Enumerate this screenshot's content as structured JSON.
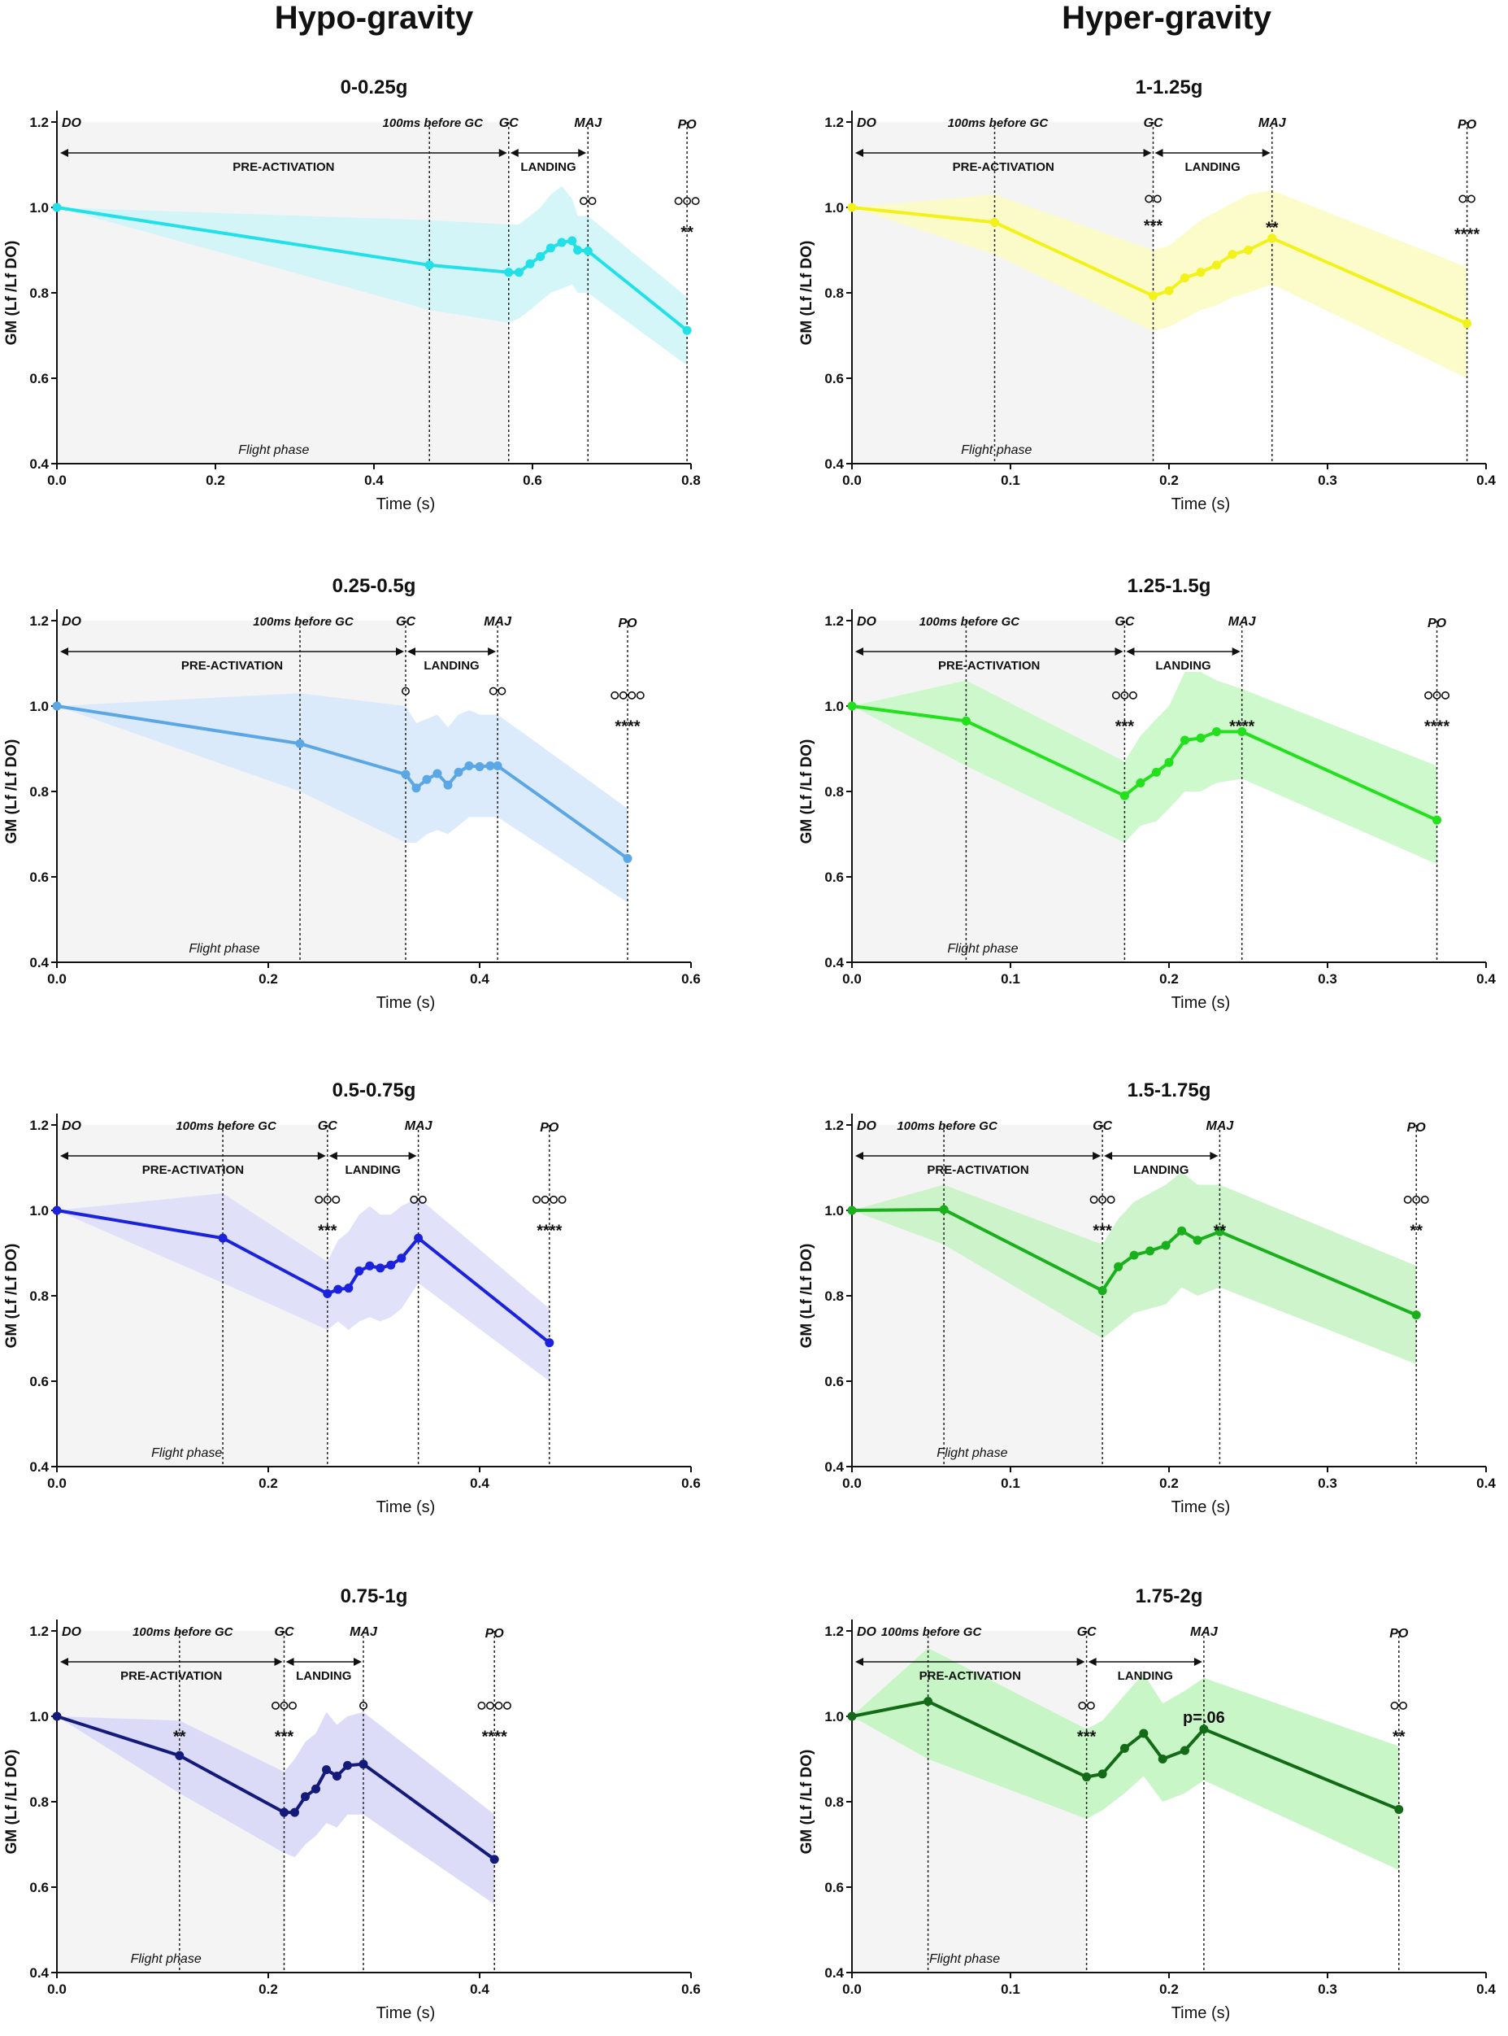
{
  "columns": {
    "left": "Hypo-gravity",
    "right": "Hyper-gravity"
  },
  "common": {
    "ylabel": "GM (Lf /Lf DO)",
    "xlabel": "Time (s)",
    "ylim": [
      0.4,
      1.2
    ],
    "yticks": [
      "0.4",
      "0.6",
      "0.8",
      "1.0",
      "1.2"
    ],
    "labels": {
      "do": "DO",
      "pre": "100ms before GC",
      "gc": "GC",
      "maj": "MAJ",
      "po": "PO",
      "preact": "PRE-ACTIVATION",
      "landing": "LANDING",
      "flight": "Flight phase"
    }
  },
  "chart_data": [
    {
      "type": "line",
      "title": "0-0.25g",
      "column": "left",
      "row": 0,
      "xlim": [
        0,
        0.8
      ],
      "xticks": [
        "0.0",
        "0.2",
        "0.4",
        "0.6",
        "0.8"
      ],
      "color": "#22E0E8",
      "band": "#CDF5F7",
      "events": {
        "pre": 0.47,
        "gc": 0.57,
        "maj": 0.67,
        "po": 0.795
      },
      "x": [
        0,
        0.47,
        0.57,
        0.583,
        0.597,
        0.61,
        0.623,
        0.637,
        0.65,
        0.657,
        0.67,
        0.795
      ],
      "y": [
        1.0,
        0.865,
        0.848,
        0.848,
        0.868,
        0.885,
        0.905,
        0.918,
        0.922,
        0.9,
        0.898,
        0.712
      ],
      "upper": [
        1.0,
        0.97,
        0.96,
        0.96,
        0.98,
        1.0,
        1.03,
        1.05,
        1.02,
        0.98,
        0.98,
        0.79
      ],
      "lower": [
        1.0,
        0.76,
        0.73,
        0.74,
        0.76,
        0.78,
        0.8,
        0.81,
        0.82,
        0.8,
        0.8,
        0.63
      ],
      "annotations": [
        {
          "x": 0.67,
          "y": 1.015,
          "text": "oo"
        },
        {
          "x": 0.795,
          "y": 1.015,
          "text": "ooo"
        },
        {
          "x": 0.795,
          "y": 0.945,
          "text": "**"
        }
      ]
    },
    {
      "type": "line",
      "title": "1-1.25g",
      "column": "right",
      "row": 0,
      "xlim": [
        0,
        0.4
      ],
      "xticks": [
        "0.0",
        "0.1",
        "0.2",
        "0.3",
        "0.4"
      ],
      "color": "#F2F21A",
      "band": "#FBFBC2",
      "events": {
        "pre": 0.09,
        "gc": 0.19,
        "maj": 0.265,
        "po": 0.388
      },
      "x": [
        0,
        0.09,
        0.19,
        0.2,
        0.21,
        0.22,
        0.23,
        0.24,
        0.25,
        0.265,
        0.388
      ],
      "y": [
        1.0,
        0.965,
        0.793,
        0.805,
        0.835,
        0.848,
        0.865,
        0.89,
        0.9,
        0.928,
        0.728
      ],
      "upper": [
        1.0,
        1.03,
        0.9,
        0.91,
        0.94,
        0.97,
        0.99,
        1.01,
        1.03,
        1.04,
        0.86
      ],
      "lower": [
        1.0,
        0.89,
        0.71,
        0.72,
        0.74,
        0.76,
        0.77,
        0.79,
        0.8,
        0.82,
        0.6
      ],
      "annotations": [
        {
          "x": 0.19,
          "y": 1.02,
          "text": "oo"
        },
        {
          "x": 0.19,
          "y": 0.96,
          "text": "***"
        },
        {
          "x": 0.265,
          "y": 0.955,
          "text": "**"
        },
        {
          "x": 0.388,
          "y": 1.02,
          "text": "oo"
        },
        {
          "x": 0.388,
          "y": 0.94,
          "text": "****"
        }
      ]
    },
    {
      "type": "line",
      "title": "0.25-0.5g",
      "column": "left",
      "row": 1,
      "xlim": [
        0,
        0.6
      ],
      "xticks": [
        "0.0",
        "0.2",
        "0.4",
        "0.6"
      ],
      "color": "#5BA7E6",
      "band": "#D6E8FA",
      "events": {
        "pre": 0.23,
        "gc": 0.33,
        "maj": 0.417,
        "po": 0.54
      },
      "x": [
        0,
        0.23,
        0.33,
        0.34,
        0.35,
        0.36,
        0.37,
        0.38,
        0.39,
        0.4,
        0.41,
        0.417,
        0.54
      ],
      "y": [
        1.0,
        0.912,
        0.84,
        0.808,
        0.828,
        0.842,
        0.815,
        0.845,
        0.86,
        0.858,
        0.86,
        0.86,
        0.643
      ],
      "upper": [
        1.0,
        1.03,
        1.0,
        0.96,
        0.97,
        0.98,
        0.95,
        0.98,
        0.99,
        0.98,
        0.98,
        0.98,
        0.76
      ],
      "lower": [
        1.0,
        0.8,
        0.68,
        0.68,
        0.7,
        0.71,
        0.7,
        0.72,
        0.74,
        0.74,
        0.74,
        0.74,
        0.54
      ],
      "annotations": [
        {
          "x": 0.33,
          "y": 1.035,
          "text": "o"
        },
        {
          "x": 0.417,
          "y": 1.035,
          "text": "oo"
        },
        {
          "x": 0.54,
          "y": 1.025,
          "text": "oooo"
        },
        {
          "x": 0.54,
          "y": 0.955,
          "text": "****"
        }
      ]
    },
    {
      "type": "line",
      "title": "1.25-1.5g",
      "column": "right",
      "row": 1,
      "xlim": [
        0,
        0.4
      ],
      "xticks": [
        "0.0",
        "0.1",
        "0.2",
        "0.3",
        "0.4"
      ],
      "color": "#22E01C",
      "band": "#C6F8C4",
      "events": {
        "pre": 0.072,
        "gc": 0.172,
        "maj": 0.246,
        "po": 0.369
      },
      "x": [
        0,
        0.072,
        0.172,
        0.182,
        0.192,
        0.2,
        0.21,
        0.22,
        0.23,
        0.246,
        0.369
      ],
      "y": [
        1.0,
        0.965,
        0.79,
        0.82,
        0.845,
        0.868,
        0.92,
        0.925,
        0.94,
        0.94,
        0.733
      ],
      "upper": [
        1.0,
        1.06,
        0.87,
        0.93,
        0.97,
        1.0,
        1.08,
        1.08,
        1.06,
        1.04,
        0.86
      ],
      "lower": [
        1.0,
        0.86,
        0.68,
        0.72,
        0.73,
        0.76,
        0.8,
        0.8,
        0.82,
        0.83,
        0.63
      ],
      "annotations": [
        {
          "x": 0.172,
          "y": 1.025,
          "text": "ooo"
        },
        {
          "x": 0.172,
          "y": 0.955,
          "text": "***"
        },
        {
          "x": 0.246,
          "y": 0.955,
          "text": "****"
        },
        {
          "x": 0.369,
          "y": 1.025,
          "text": "ooo"
        },
        {
          "x": 0.369,
          "y": 0.955,
          "text": "****"
        }
      ]
    },
    {
      "type": "line",
      "title": "0.5-0.75g",
      "column": "left",
      "row": 2,
      "xlim": [
        0,
        0.6
      ],
      "xticks": [
        "0.0",
        "0.2",
        "0.4",
        "0.6"
      ],
      "color": "#1A22DD",
      "band": "#DCDDF8",
      "events": {
        "pre": 0.157,
        "gc": 0.256,
        "maj": 0.342,
        "po": 0.466
      },
      "x": [
        0,
        0.157,
        0.256,
        0.266,
        0.276,
        0.286,
        0.296,
        0.306,
        0.316,
        0.326,
        0.342,
        0.466
      ],
      "y": [
        1.0,
        0.935,
        0.805,
        0.815,
        0.818,
        0.858,
        0.87,
        0.865,
        0.872,
        0.888,
        0.935,
        0.69
      ],
      "upper": [
        1.0,
        1.04,
        0.88,
        0.93,
        0.95,
        0.99,
        1.01,
        0.99,
        0.99,
        1.01,
        1.03,
        0.77
      ],
      "lower": [
        1.0,
        0.83,
        0.72,
        0.74,
        0.72,
        0.74,
        0.75,
        0.74,
        0.75,
        0.77,
        0.83,
        0.6
      ],
      "annotations": [
        {
          "x": 0.256,
          "y": 1.025,
          "text": "ooo"
        },
        {
          "x": 0.256,
          "y": 0.955,
          "text": "***"
        },
        {
          "x": 0.342,
          "y": 1.025,
          "text": "oo"
        },
        {
          "x": 0.466,
          "y": 1.025,
          "text": "oooo"
        },
        {
          "x": 0.466,
          "y": 0.955,
          "text": "****"
        }
      ]
    },
    {
      "type": "line",
      "title": "1.5-1.75g",
      "column": "right",
      "row": 2,
      "xlim": [
        0,
        0.4
      ],
      "xticks": [
        "0.0",
        "0.1",
        "0.2",
        "0.3",
        "0.4"
      ],
      "color": "#1AAF1C",
      "band": "#C4F2C2",
      "events": {
        "pre": 0.058,
        "gc": 0.158,
        "maj": 0.232,
        "po": 0.356
      },
      "x": [
        0,
        0.058,
        0.158,
        0.168,
        0.178,
        0.188,
        0.198,
        0.208,
        0.218,
        0.232,
        0.356
      ],
      "y": [
        1.0,
        1.002,
        0.812,
        0.868,
        0.895,
        0.905,
        0.918,
        0.952,
        0.93,
        0.95,
        0.755
      ],
      "upper": [
        1.0,
        1.06,
        0.92,
        0.98,
        1.02,
        1.04,
        1.06,
        1.09,
        1.06,
        1.06,
        0.87
      ],
      "lower": [
        1.0,
        0.92,
        0.7,
        0.73,
        0.76,
        0.77,
        0.78,
        0.82,
        0.8,
        0.82,
        0.64
      ],
      "annotations": [
        {
          "x": 0.158,
          "y": 1.025,
          "text": "ooo"
        },
        {
          "x": 0.158,
          "y": 0.955,
          "text": "***"
        },
        {
          "x": 0.232,
          "y": 0.955,
          "text": "**"
        },
        {
          "x": 0.356,
          "y": 1.025,
          "text": "ooo"
        },
        {
          "x": 0.356,
          "y": 0.955,
          "text": "**"
        }
      ]
    },
    {
      "type": "line",
      "title": "0.75-1g",
      "column": "left",
      "row": 3,
      "xlim": [
        0,
        0.6
      ],
      "xticks": [
        "0.0",
        "0.2",
        "0.4",
        "0.6"
      ],
      "color": "#141A7A",
      "band": "#D6D6F8",
      "events": {
        "pre": 0.116,
        "gc": 0.215,
        "maj": 0.29,
        "po": 0.414
      },
      "x": [
        0,
        0.116,
        0.215,
        0.225,
        0.235,
        0.245,
        0.255,
        0.265,
        0.275,
        0.29,
        0.414
      ],
      "y": [
        1.0,
        0.908,
        0.775,
        0.775,
        0.812,
        0.83,
        0.875,
        0.86,
        0.885,
        0.888,
        0.665
      ],
      "upper": [
        1.0,
        0.99,
        0.87,
        0.9,
        0.94,
        0.96,
        1.01,
        0.98,
        1.0,
        1.01,
        0.77
      ],
      "lower": [
        1.0,
        0.82,
        0.68,
        0.67,
        0.7,
        0.72,
        0.75,
        0.74,
        0.77,
        0.77,
        0.56
      ],
      "annotations": [
        {
          "x": 0.116,
          "y": 0.955,
          "text": "**"
        },
        {
          "x": 0.215,
          "y": 1.025,
          "text": "ooo"
        },
        {
          "x": 0.215,
          "y": 0.955,
          "text": "***"
        },
        {
          "x": 0.29,
          "y": 1.025,
          "text": "o"
        },
        {
          "x": 0.414,
          "y": 1.025,
          "text": "oooo"
        },
        {
          "x": 0.414,
          "y": 0.955,
          "text": "****"
        }
      ]
    },
    {
      "type": "line",
      "title": "1.75-2g",
      "column": "right",
      "row": 3,
      "xlim": [
        0,
        0.4
      ],
      "xticks": [
        "0.0",
        "0.1",
        "0.2",
        "0.3",
        "0.4"
      ],
      "color": "#146B17",
      "band": "#BFF5BD",
      "events": {
        "pre": 0.048,
        "gc": 0.148,
        "maj": 0.222,
        "po": 0.345
      },
      "x": [
        0,
        0.048,
        0.148,
        0.158,
        0.172,
        0.184,
        0.196,
        0.21,
        0.222,
        0.345
      ],
      "y": [
        1.0,
        1.035,
        0.858,
        0.865,
        0.925,
        0.96,
        0.9,
        0.92,
        0.97,
        0.782
      ],
      "upper": [
        1.0,
        1.16,
        0.97,
        0.99,
        1.05,
        1.1,
        1.03,
        1.06,
        1.09,
        0.93
      ],
      "lower": [
        1.0,
        0.9,
        0.76,
        0.78,
        0.82,
        0.86,
        0.8,
        0.82,
        0.85,
        0.64
      ],
      "annotations": [
        {
          "x": 0.148,
          "y": 1.025,
          "text": "oo"
        },
        {
          "x": 0.148,
          "y": 0.955,
          "text": "***"
        },
        {
          "x": 0.222,
          "y": 1.0,
          "text": "p=.06"
        },
        {
          "x": 0.345,
          "y": 1.025,
          "text": "oo"
        },
        {
          "x": 0.345,
          "y": 0.955,
          "text": "**"
        }
      ]
    }
  ]
}
